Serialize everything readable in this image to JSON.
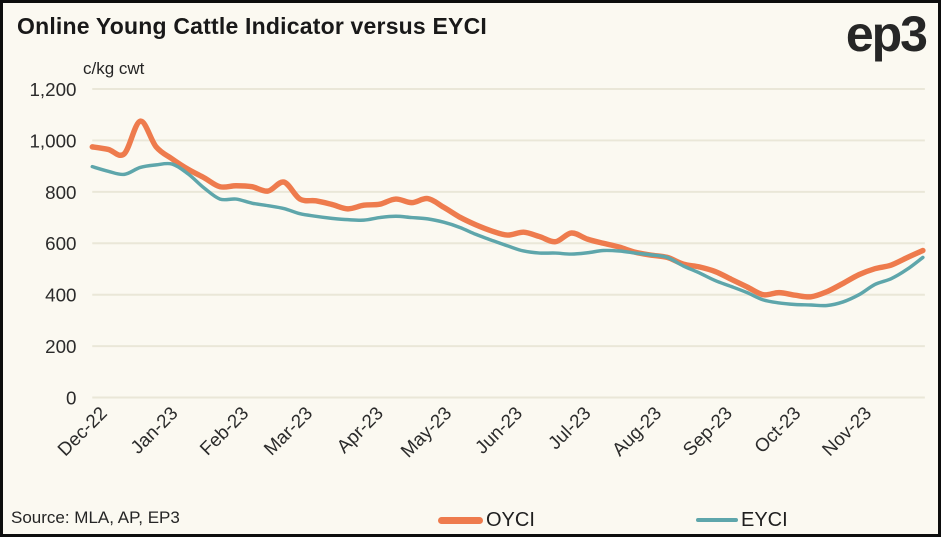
{
  "header": {
    "title": "Online Young Cattle Indicator versus EYCI",
    "unit_label": "c/kg cwt",
    "logo_text": "ep3"
  },
  "footer": {
    "source": "Source: MLA, AP, EP3"
  },
  "legend": {
    "position": "bottom",
    "items": [
      {
        "label": "OYCI",
        "color": "#EE7B4D"
      },
      {
        "label": "EYCI",
        "color": "#5EA6AB"
      }
    ]
  },
  "colors": {
    "background": "#FBF9F1",
    "frame": "#0d0d0d",
    "gridline": "#EAE7D8",
    "axis_text": "#2b2b2b",
    "oyci_orange": "#EE7B4D",
    "eyci_teal": "#5EA6AB"
  },
  "chart_data": {
    "type": "line",
    "title": "Online Young Cattle Indicator versus EYCI",
    "ylabel": "c/kg cwt",
    "xlabel": "",
    "grid": "horizontal",
    "legend_position": "bottom",
    "ylim": [
      0,
      1200
    ],
    "yticks": [
      0,
      200,
      400,
      600,
      800,
      1000,
      1200
    ],
    "ytick_labels": [
      "0",
      "200",
      "400",
      "600",
      "800",
      "1,000",
      "1,200"
    ],
    "x_domain_weeks": [
      0,
      52
    ],
    "xticks": [
      {
        "label": "Dec-22",
        "week": 0
      },
      {
        "label": "Jan-23",
        "week": 4.43
      },
      {
        "label": "Feb-23",
        "week": 8.86
      },
      {
        "label": "Mar-23",
        "week": 12.86
      },
      {
        "label": "Apr-23",
        "week": 17.29
      },
      {
        "label": "May-23",
        "week": 21.57
      },
      {
        "label": "Jun-23",
        "week": 26.0
      },
      {
        "label": "Jul-23",
        "week": 30.29
      },
      {
        "label": "Aug-23",
        "week": 34.71
      },
      {
        "label": "Sep-23",
        "week": 39.14
      },
      {
        "label": "Oct-23",
        "week": 43.43
      },
      {
        "label": "Nov-23",
        "week": 47.86
      }
    ],
    "x_unit": "weekly, Dec-2022 to Nov-2023",
    "series": [
      {
        "name": "OYCI",
        "color": "#EE7B4D",
        "values_weekly": [
          975,
          965,
          948,
          1075,
          975,
          928,
          888,
          855,
          820,
          824,
          820,
          803,
          838,
          772,
          765,
          751,
          734,
          748,
          752,
          772,
          758,
          774,
          740,
          702,
          672,
          648,
          632,
          643,
          626,
          606,
          640,
          616,
          600,
          585,
          565,
          554,
          545,
          519,
          508,
          490,
          460,
          430,
          400,
          408,
          398,
          392,
          412,
          444,
          478,
          501,
          515,
          544,
          572
        ]
      },
      {
        "name": "EYCI",
        "color": "#5EA6AB",
        "values_weekly": [
          898,
          880,
          868,
          895,
          905,
          908,
          870,
          815,
          772,
          772,
          756,
          746,
          735,
          715,
          705,
          697,
          692,
          690,
          700,
          705,
          700,
          695,
          682,
          662,
          635,
          612,
          590,
          570,
          562,
          562,
          558,
          563,
          572,
          570,
          562,
          555,
          545,
          512,
          485,
          455,
          432,
          408,
          380,
          368,
          362,
          360,
          358,
          372,
          400,
          440,
          462,
          498,
          545
        ]
      }
    ]
  }
}
